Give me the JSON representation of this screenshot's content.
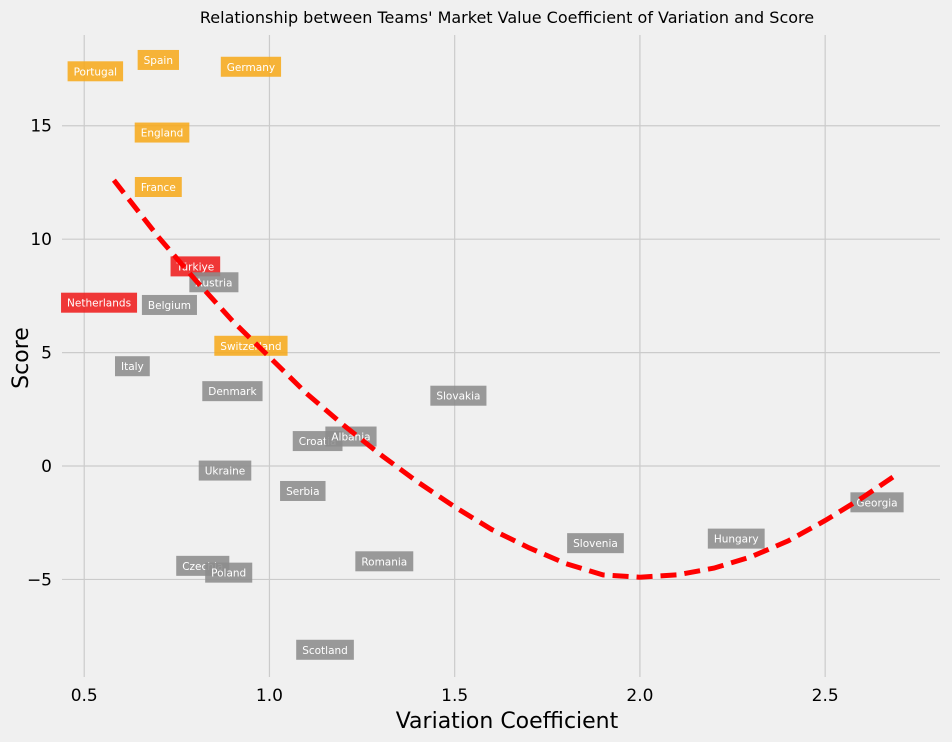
{
  "chart_data": {
    "type": "scatter",
    "title": "Relationship between Teams' Market Value Coefficient of Variation and Score",
    "xlabel": "Variation Coefficient",
    "ylabel": "Score",
    "xlim": [
      0.44,
      2.81
    ],
    "ylim": [
      -9.3,
      19.0
    ],
    "xticks": [
      0.5,
      1.0,
      1.5,
      2.0,
      2.5
    ],
    "xtick_labels": [
      "0.5",
      "1.0",
      "1.5",
      "2.0",
      "2.5"
    ],
    "yticks": [
      -5,
      0,
      5,
      10,
      15
    ],
    "ytick_labels": [
      "−5",
      "0",
      "5",
      "10",
      "15"
    ],
    "grid": true,
    "colors": {
      "orange": "#f6aa1c",
      "red": "#ee1c1c",
      "gray": "#8c8c8c",
      "trend": "#ff0000",
      "background": "#f0f0f0"
    },
    "points": [
      {
        "name": "Portugal",
        "x": 0.53,
        "y": 17.4,
        "color": "orange"
      },
      {
        "name": "Spain",
        "x": 0.7,
        "y": 17.9,
        "color": "orange"
      },
      {
        "name": "Germany",
        "x": 0.95,
        "y": 17.6,
        "color": "orange"
      },
      {
        "name": "England",
        "x": 0.71,
        "y": 14.7,
        "color": "orange"
      },
      {
        "name": "France",
        "x": 0.7,
        "y": 12.3,
        "color": "orange"
      },
      {
        "name": "Türkiye",
        "x": 0.8,
        "y": 8.8,
        "color": "red"
      },
      {
        "name": "Austria",
        "x": 0.85,
        "y": 8.1,
        "color": "gray"
      },
      {
        "name": "Netherlands",
        "x": 0.54,
        "y": 7.2,
        "color": "red"
      },
      {
        "name": "Belgium",
        "x": 0.73,
        "y": 7.1,
        "color": "gray"
      },
      {
        "name": "Switzerland",
        "x": 0.95,
        "y": 5.3,
        "color": "orange"
      },
      {
        "name": "Italy",
        "x": 0.63,
        "y": 4.4,
        "color": "gray"
      },
      {
        "name": "Denmark",
        "x": 0.9,
        "y": 3.3,
        "color": "gray"
      },
      {
        "name": "Slovakia",
        "x": 1.51,
        "y": 3.1,
        "color": "gray"
      },
      {
        "name": "Croatia",
        "x": 1.13,
        "y": 1.1,
        "color": "gray"
      },
      {
        "name": "Albania",
        "x": 1.22,
        "y": 1.3,
        "color": "gray"
      },
      {
        "name": "Ukraine",
        "x": 0.88,
        "y": -0.2,
        "color": "gray"
      },
      {
        "name": "Serbia",
        "x": 1.09,
        "y": -1.1,
        "color": "gray"
      },
      {
        "name": "Georgia",
        "x": 2.64,
        "y": -1.6,
        "color": "gray"
      },
      {
        "name": "Hungary",
        "x": 2.26,
        "y": -3.2,
        "color": "gray"
      },
      {
        "name": "Slovenia",
        "x": 1.88,
        "y": -3.4,
        "color": "gray"
      },
      {
        "name": "Romania",
        "x": 1.31,
        "y": -4.2,
        "color": "gray"
      },
      {
        "name": "Czechia",
        "x": 0.82,
        "y": -4.4,
        "color": "gray"
      },
      {
        "name": "Poland",
        "x": 0.89,
        "y": -4.7,
        "color": "gray"
      },
      {
        "name": "Scotland",
        "x": 1.15,
        "y": -8.1,
        "color": "gray"
      }
    ],
    "trendline": {
      "type": "quadratic",
      "style": "dashed",
      "color": "trend",
      "x": [
        0.58,
        0.7,
        0.8,
        0.9,
        1.0,
        1.1,
        1.2,
        1.3,
        1.4,
        1.5,
        1.6,
        1.7,
        1.8,
        1.9,
        2.0,
        2.1,
        2.2,
        2.3,
        2.4,
        2.5,
        2.6,
        2.7
      ],
      "y": [
        12.6,
        10.1,
        8.2,
        6.4,
        4.8,
        3.2,
        1.8,
        0.5,
        -0.7,
        -1.8,
        -2.8,
        -3.6,
        -4.3,
        -4.8,
        -4.9,
        -4.8,
        -4.5,
        -4.0,
        -3.3,
        -2.4,
        -1.4,
        -0.3
      ]
    }
  }
}
